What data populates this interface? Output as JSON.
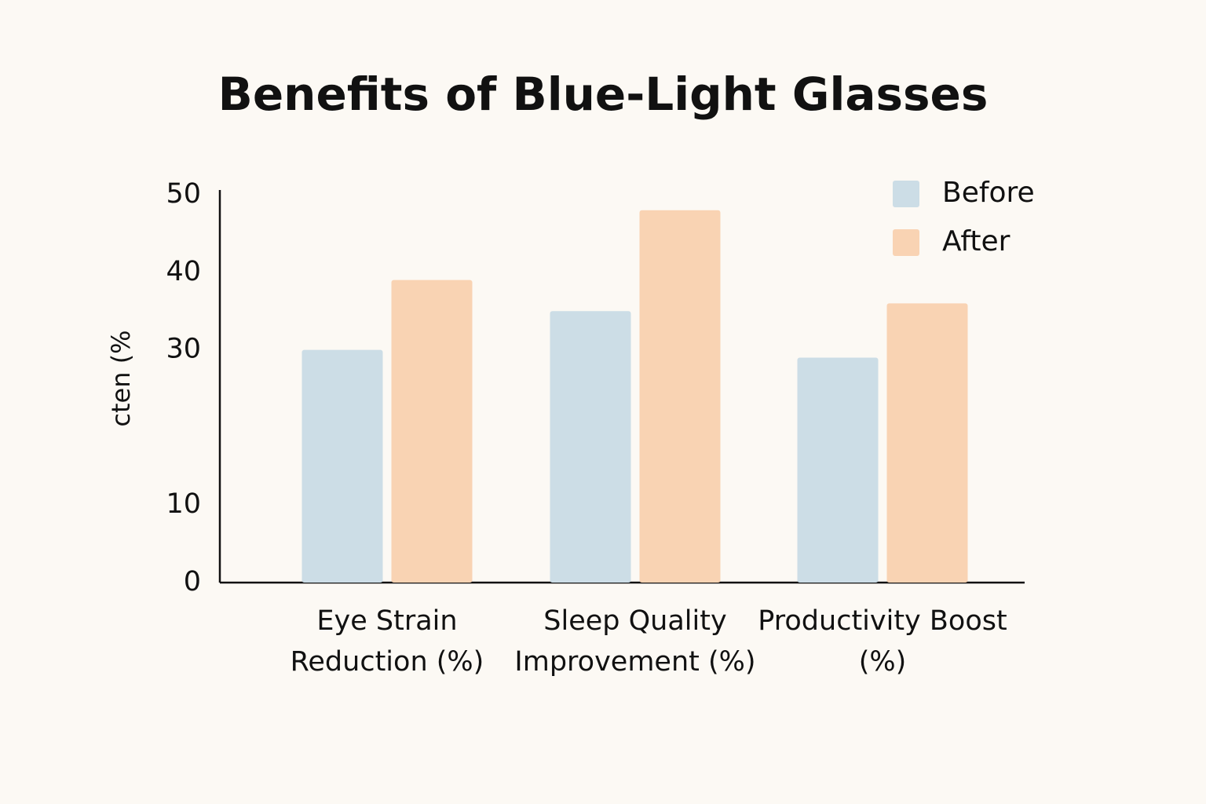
{
  "chart_data": {
    "type": "bar",
    "title": "Benefits of Blue-Light Glasses",
    "y_label": "cten (%",
    "categories": [
      "Eye Strain Reduction (%)",
      "Sleep Quality Improvement (%)",
      "Productivity Boost (%)"
    ],
    "series": [
      {
        "name": "Before",
        "color": "#ccdde6",
        "values": [
          30,
          35,
          29
        ]
      },
      {
        "name": "After",
        "color": "#f9d3b3",
        "values": [
          39,
          48,
          36
        ]
      }
    ],
    "ylim": [
      0,
      50
    ],
    "yticks": [
      0,
      10,
      30,
      40,
      50
    ],
    "grid": false,
    "legend": "top-right"
  }
}
